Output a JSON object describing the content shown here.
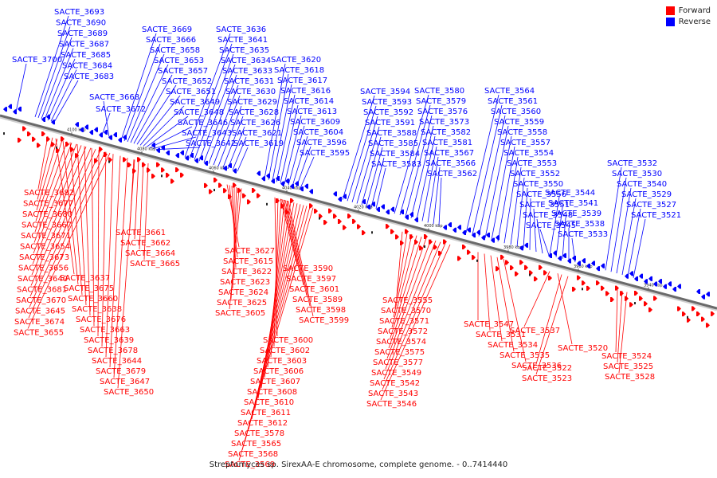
{
  "caption": "Streptomyces sp. SirexAA-E chromosome, complete genome. - 0..7414440",
  "legend": [
    {
      "label": "Forward",
      "color": "#ff0000"
    },
    {
      "label": "Reverse",
      "color": "#0000ff"
    }
  ],
  "ticks": [
    "4100 kbp",
    "4080 kbp",
    "4060 kbp",
    "4040 kbp",
    "4020 kbp",
    "4000 kbp",
    "3980 kbp",
    "3960 kbp",
    "3940 kbp"
  ],
  "reverse_labels": [
    "SACTE_3700",
    "SACTE_3693",
    "SACTE_3690",
    "SACTE_3689",
    "SACTE_3687",
    "SACTE_3685",
    "SACTE_3684",
    "SACTE_3683",
    "SACTE_3672",
    "SACTE_3668",
    "SACTE_3669",
    "SACTE_3666",
    "SACTE_3658",
    "SACTE_3653",
    "SACTE_3657",
    "SACTE_3652",
    "SACTE_3651",
    "SACTE_3649",
    "SACTE_3648",
    "SACTE_3646",
    "SACTE_3643",
    "SACTE_3642",
    "SACTE_3636",
    "SACTE_3641",
    "SACTE_3635",
    "SACTE_3634",
    "SACTE_3633",
    "SACTE_3631",
    "SACTE_3630",
    "SACTE_3629",
    "SACTE_3628",
    "SACTE_3626",
    "SACTE_3621",
    "SACTE_3619",
    "SACTE_3620",
    "SACTE_3618",
    "SACTE_3617",
    "SACTE_3616",
    "SACTE_3614",
    "SACTE_3613",
    "SACTE_3609",
    "SACTE_3604",
    "SACTE_3596",
    "SACTE_3595",
    "SACTE_3594",
    "SACTE_3593",
    "SACTE_3592",
    "SACTE_3591",
    "SACTE_3588",
    "SACTE_3585",
    "SACTE_3584",
    "SACTE_3583",
    "SACTE_3580",
    "SACTE_3579",
    "SACTE_3576",
    "SACTE_3573",
    "SACTE_3582",
    "SACTE_3581",
    "SACTE_3567",
    "SACTE_3566",
    "SACTE_3562",
    "SACTE_3564",
    "SACTE_3561",
    "SACTE_3560",
    "SACTE_3559",
    "SACTE_3558",
    "SACTE_3557",
    "SACTE_3554",
    "SACTE_3553",
    "SACTE_3552",
    "SACTE_3550",
    "SACTE_3556",
    "SACTE_3551",
    "SACTE_3548",
    "SACTE_3545",
    "SACTE_3544",
    "SACTE_3541",
    "SACTE_3539",
    "SACTE_3538",
    "SACTE_3533",
    "SACTE_3532",
    "SACTE_3530",
    "SACTE_3540",
    "SACTE_3529",
    "SACTE_3527",
    "SACTE_3521"
  ],
  "forward_labels": [
    "SACTE_3682",
    "SACTE_3677",
    "SACTE_3680",
    "SACTE_3667",
    "SACTE_3671",
    "SACTE_3654",
    "SACTE_3673",
    "SACTE_3656",
    "SACTE_3640",
    "SACTE_3681",
    "SACTE_3670",
    "SACTE_3645",
    "SACTE_3674",
    "SACTE_3655",
    "SACTE_3637",
    "SACTE_3675",
    "SACTE_3660",
    "SACTE_3638",
    "SACTE_3676",
    "SACTE_3663",
    "SACTE_3639",
    "SACTE_3678",
    "SACTE_3644",
    "SACTE_3679",
    "SACTE_3647",
    "SACTE_3650",
    "SACTE_3661",
    "SACTE_3662",
    "SACTE_3664",
    "SACTE_3665",
    "SACTE_3627",
    "SACTE_3615",
    "SACTE_3622",
    "SACTE_3623",
    "SACTE_3624",
    "SACTE_3625",
    "SACTE_3605",
    "SACTE_3590",
    "SACTE_3597",
    "SACTE_3601",
    "SACTE_3589",
    "SACTE_3598",
    "SACTE_3599",
    "SACTE_3600",
    "SACTE_3602",
    "SACTE_3603",
    "SACTE_3606",
    "SACTE_3607",
    "SACTE_3608",
    "SACTE_3610",
    "SACTE_3611",
    "SACTE_3612",
    "SACTE_3578",
    "SACTE_3565",
    "SACTE_3568",
    "SACTE_3569",
    "SACTE_3555",
    "SACTE_3570",
    "SACTE_3571",
    "SACTE_3572",
    "SACTE_3574",
    "SACTE_3575",
    "SACTE_3577",
    "SACTE_3549",
    "SACTE_3542",
    "SACTE_3543",
    "SACTE_3546",
    "SACTE_3547",
    "SACTE_3531",
    "SACTE_3534",
    "SACTE_3535",
    "SACTE_3536",
    "SACTE_3537",
    "SACTE_3520",
    "SACTE_3522",
    "SACTE_3523",
    "SACTE_3524",
    "SACTE_3525",
    "SACTE_3528"
  ]
}
